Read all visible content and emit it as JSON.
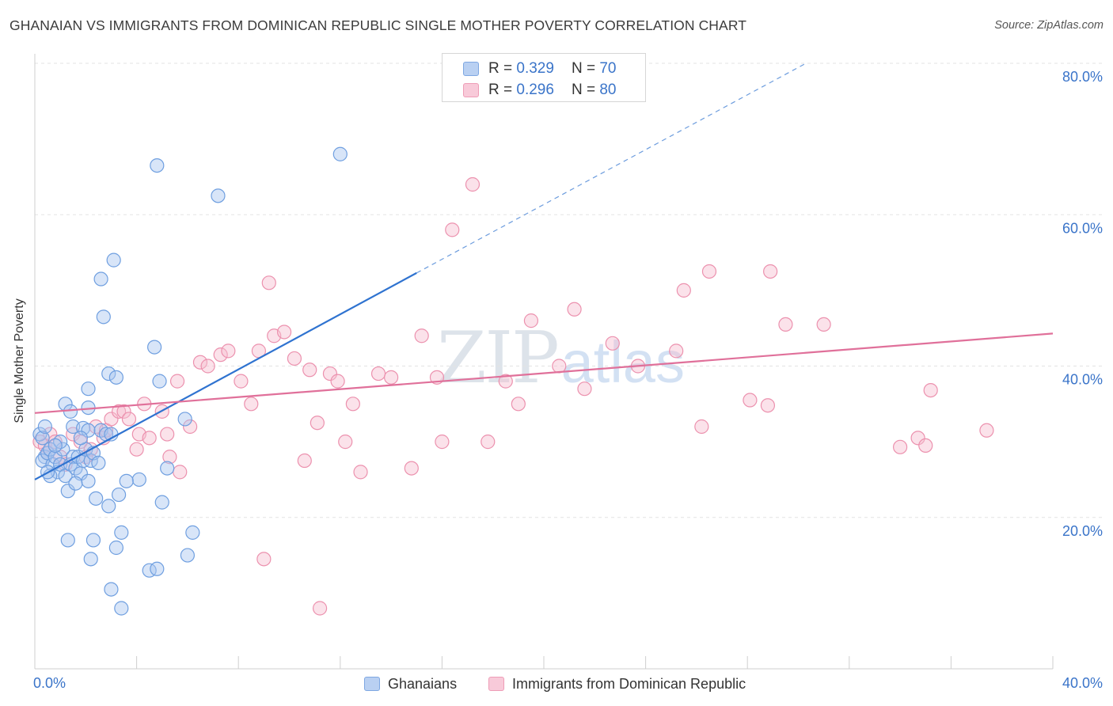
{
  "header": {
    "title": "GHANAIAN VS IMMIGRANTS FROM DOMINICAN REPUBLIC SINGLE MOTHER POVERTY CORRELATION CHART",
    "source_label": "Source:",
    "source_value": "ZipAtlas.com"
  },
  "watermark": {
    "zip": "ZIP",
    "atlas": "atlas"
  },
  "legend": {
    "blue": {
      "r_label": "R =",
      "r_value": "0.329",
      "n_label": "N =",
      "n_value": "70"
    },
    "pink": {
      "r_label": "R =",
      "r_value": "0.296",
      "n_label": "N =",
      "n_value": "80"
    }
  },
  "colors": {
    "blue_fill": "#a9c6ef",
    "blue_stroke": "#6f9fe0",
    "blue_line": "#2f73d0",
    "pink_fill": "#f6bfd0",
    "pink_stroke": "#ec91ae",
    "pink_line": "#e0709a",
    "axis_text": "#3a74c9",
    "grid": "#e3e3e3"
  },
  "chart_data": {
    "type": "scatter",
    "title": "GHANAIAN VS IMMIGRANTS FROM DOMINICAN REPUBLIC SINGLE MOTHER POVERTY CORRELATION CHART",
    "xlabel": "",
    "ylabel": "Single Mother Poverty",
    "xlim": [
      0,
      40
    ],
    "ylim": [
      0,
      80
    ],
    "x_tick_labels": [
      "0.0%",
      "40.0%"
    ],
    "y_ticks": [
      20,
      40,
      60,
      80
    ],
    "y_tick_labels": [
      "20.0%",
      "40.0%",
      "60.0%",
      "80.0%"
    ],
    "grid": true,
    "legend_position": "top-center",
    "series": [
      {
        "name": "Ghanaians",
        "color": "#a9c6ef",
        "r": 0.329,
        "n": 70,
        "trend": {
          "x": [
            0,
            15
          ],
          "y": [
            25,
            52.3
          ],
          "extend_to": [
            30.3,
            80
          ]
        },
        "points": [
          [
            0.2,
            31
          ],
          [
            0.3,
            30.5
          ],
          [
            0.4,
            28
          ],
          [
            0.3,
            27.5
          ],
          [
            0.5,
            28.5
          ],
          [
            0.6,
            29
          ],
          [
            0.4,
            32
          ],
          [
            0.7,
            27
          ],
          [
            0.8,
            28
          ],
          [
            0.9,
            26
          ],
          [
            1.0,
            27
          ],
          [
            1.1,
            29
          ],
          [
            0.6,
            25.5
          ],
          [
            1.2,
            25.5
          ],
          [
            1.4,
            27
          ],
          [
            1.5,
            28
          ],
          [
            1.6,
            26.5
          ],
          [
            1.7,
            28
          ],
          [
            1.8,
            25.8
          ],
          [
            1.9,
            27.5
          ],
          [
            2.0,
            29
          ],
          [
            2.2,
            27.5
          ],
          [
            2.3,
            28.5
          ],
          [
            1.3,
            23.5
          ],
          [
            1.5,
            32
          ],
          [
            1.9,
            31.8
          ],
          [
            2.1,
            31.5
          ],
          [
            2.6,
            31.5
          ],
          [
            2.8,
            31
          ],
          [
            3.0,
            31
          ],
          [
            1.2,
            35
          ],
          [
            1.4,
            34
          ],
          [
            2.1,
            34.5
          ],
          [
            2.1,
            37
          ],
          [
            2.9,
            39
          ],
          [
            3.2,
            38.5
          ],
          [
            4.9,
            38
          ],
          [
            4.7,
            42.5
          ],
          [
            2.7,
            46.5
          ],
          [
            2.6,
            51.5
          ],
          [
            3.1,
            54
          ],
          [
            4.8,
            66.5
          ],
          [
            7.2,
            62.5
          ],
          [
            12,
            68
          ],
          [
            1.6,
            24.5
          ],
          [
            2.4,
            22.5
          ],
          [
            2.9,
            21.5
          ],
          [
            3.3,
            23
          ],
          [
            4.1,
            25
          ],
          [
            5.0,
            22
          ],
          [
            5.2,
            26.5
          ],
          [
            3.4,
            18
          ],
          [
            6.2,
            18
          ],
          [
            1.3,
            17
          ],
          [
            2.3,
            17
          ],
          [
            3.2,
            16
          ],
          [
            6.0,
            15
          ],
          [
            2.2,
            14.5
          ],
          [
            4.5,
            13
          ],
          [
            4.8,
            13.2
          ],
          [
            3.0,
            10.5
          ],
          [
            3.4,
            8
          ],
          [
            5.9,
            33
          ],
          [
            2.1,
            24.8
          ],
          [
            1.0,
            30
          ],
          [
            0.8,
            29.5
          ],
          [
            2.5,
            27.2
          ],
          [
            3.6,
            24.8
          ],
          [
            1.8,
            30.5
          ],
          [
            0.5,
            26
          ]
        ]
      },
      {
        "name": "Immigrants from Dominican Republic",
        "color": "#f6bfd0",
        "r": 0.296,
        "n": 80,
        "trend": {
          "x": [
            0,
            40
          ],
          "y": [
            33.8,
            44.3
          ]
        },
        "points": [
          [
            0.2,
            30
          ],
          [
            0.4,
            29.5
          ],
          [
            0.5,
            28.5
          ],
          [
            0.6,
            31
          ],
          [
            0.8,
            30
          ],
          [
            1.0,
            28
          ],
          [
            1.2,
            27
          ],
          [
            1.5,
            31
          ],
          [
            1.8,
            30
          ],
          [
            2.0,
            28
          ],
          [
            2.2,
            29
          ],
          [
            2.4,
            32
          ],
          [
            2.7,
            30.5
          ],
          [
            2.8,
            31.5
          ],
          [
            3.0,
            33
          ],
          [
            3.3,
            34
          ],
          [
            3.5,
            34
          ],
          [
            3.7,
            33
          ],
          [
            4.1,
            31
          ],
          [
            4.3,
            35
          ],
          [
            4.5,
            30.5
          ],
          [
            5.0,
            34
          ],
          [
            5.3,
            28
          ],
          [
            5.7,
            26
          ],
          [
            5.6,
            38
          ],
          [
            5.2,
            31
          ],
          [
            6.1,
            32
          ],
          [
            6.5,
            40.5
          ],
          [
            6.8,
            40
          ],
          [
            7.3,
            41.5
          ],
          [
            7.6,
            42
          ],
          [
            8.1,
            38
          ],
          [
            8.5,
            35
          ],
          [
            8.8,
            42
          ],
          [
            9.2,
            51
          ],
          [
            9.4,
            44
          ],
          [
            9.8,
            44.5
          ],
          [
            10.2,
            41
          ],
          [
            10.8,
            39.5
          ],
          [
            11.1,
            32.5
          ],
          [
            11.6,
            39
          ],
          [
            11.9,
            38
          ],
          [
            12.2,
            30
          ],
          [
            12.5,
            35
          ],
          [
            13.5,
            39
          ],
          [
            14.0,
            38.5
          ],
          [
            15.2,
            44
          ],
          [
            15.8,
            38.5
          ],
          [
            16.4,
            58
          ],
          [
            17.2,
            64
          ],
          [
            17.8,
            30
          ],
          [
            18.5,
            38
          ],
          [
            19.0,
            35
          ],
          [
            19.5,
            46
          ],
          [
            20.6,
            40
          ],
          [
            21.2,
            47.5
          ],
          [
            21.6,
            37
          ],
          [
            22.7,
            43
          ],
          [
            23.7,
            40
          ],
          [
            25.2,
            42
          ],
          [
            25.5,
            50
          ],
          [
            26.2,
            32
          ],
          [
            26.5,
            52.5
          ],
          [
            28.1,
            35.5
          ],
          [
            28.9,
            52.5
          ],
          [
            29.5,
            45.5
          ],
          [
            28.8,
            34.8
          ],
          [
            31.0,
            45.5
          ],
          [
            34.0,
            29.3
          ],
          [
            34.7,
            30.5
          ],
          [
            35.0,
            29.5
          ],
          [
            35.2,
            36.8
          ],
          [
            37.4,
            31.5
          ],
          [
            11.2,
            8
          ],
          [
            9.0,
            14.5
          ],
          [
            10.6,
            27.5
          ],
          [
            14.8,
            26.5
          ],
          [
            16.0,
            30
          ],
          [
            4.0,
            29
          ],
          [
            12.8,
            26
          ]
        ]
      }
    ]
  }
}
